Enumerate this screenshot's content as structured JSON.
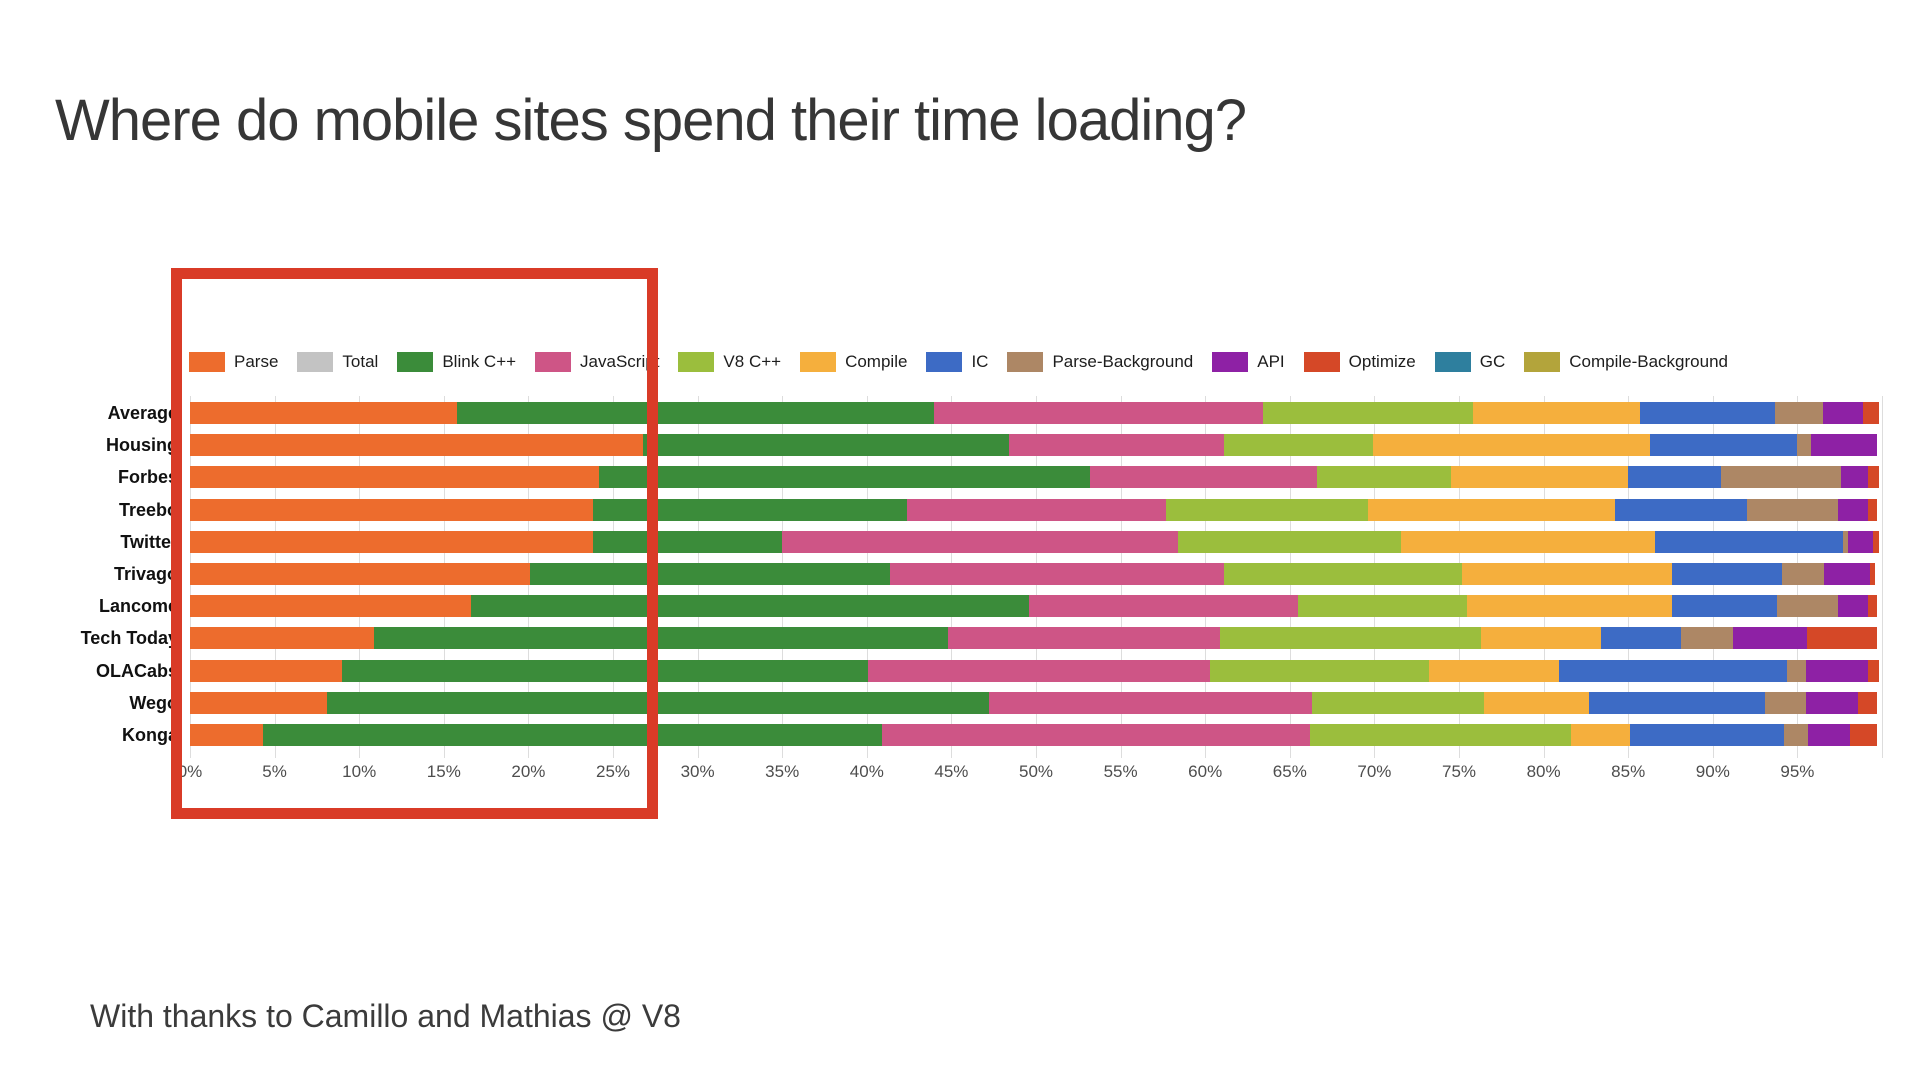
{
  "page": {
    "title": "Where do mobile sites spend their time loading?",
    "footer": "With thanks to Camillo and Mathias @ V8"
  },
  "chart_data": {
    "type": "bar",
    "stacked": true,
    "orientation": "horizontal",
    "grid": true,
    "legend_position": "top",
    "xlim": [
      0,
      100
    ],
    "x_ticks": [
      "0%",
      "5%",
      "10%",
      "15%",
      "20%",
      "25%",
      "30%",
      "35%",
      "40%",
      "45%",
      "50%",
      "55%",
      "60%",
      "65%",
      "70%",
      "75%",
      "80%",
      "85%",
      "90%",
      "95%"
    ],
    "categories": [
      "Average",
      "Housing",
      "Forbes",
      "Treebo",
      "Twitter",
      "Trivago",
      "Lancome",
      "Tech Today",
      "OLACabs",
      "Wego",
      "Konga"
    ],
    "series": [
      {
        "name": "Parse",
        "color": "#ed6c2d",
        "dotted": false,
        "values": [
          15.8,
          26.8,
          24.2,
          23.8,
          23.8,
          20.1,
          16.6,
          10.9,
          9.0,
          8.1,
          4.3
        ]
      },
      {
        "name": "Total",
        "color": "#c3c3c3",
        "dotted": false,
        "values": [
          0,
          0,
          0,
          0,
          0,
          0,
          0,
          0,
          0,
          0,
          0
        ]
      },
      {
        "name": "Blink C++",
        "color": "#3b8c3a",
        "dotted": false,
        "values": [
          28.2,
          21.6,
          29.0,
          18.6,
          11.2,
          21.3,
          33.0,
          33.9,
          31.1,
          39.1,
          36.6
        ]
      },
      {
        "name": "JavaScript",
        "color": "#ce5586",
        "dotted": false,
        "values": [
          19.4,
          12.7,
          13.4,
          15.3,
          23.4,
          19.7,
          15.9,
          16.1,
          20.2,
          19.1,
          25.3
        ]
      },
      {
        "name": "V8 C++",
        "color": "#9bbe3d",
        "dotted": false,
        "values": [
          12.4,
          8.8,
          7.9,
          11.9,
          13.2,
          14.1,
          10.0,
          15.4,
          12.9,
          10.2,
          15.4
        ]
      },
      {
        "name": "Compile",
        "color": "#f5af3d",
        "dotted": false,
        "values": [
          9.9,
          16.4,
          10.5,
          14.6,
          15.0,
          12.4,
          12.1,
          7.1,
          7.7,
          6.2,
          3.5
        ]
      },
      {
        "name": "IC",
        "color": "#3d6bc5",
        "dotted": false,
        "values": [
          8.0,
          8.7,
          5.5,
          7.8,
          11.1,
          6.5,
          6.2,
          4.7,
          13.5,
          10.4,
          9.1
        ]
      },
      {
        "name": "Parse-Background",
        "color": "#ad8765",
        "dotted": true,
        "values": [
          2.8,
          0.8,
          7.1,
          5.4,
          0.3,
          2.5,
          3.6,
          3.1,
          1.1,
          2.4,
          1.4
        ]
      },
      {
        "name": "API",
        "color": "#8e21a5",
        "dotted": false,
        "values": [
          2.4,
          3.9,
          1.6,
          1.8,
          1.5,
          2.7,
          1.8,
          4.4,
          3.7,
          3.1,
          2.5
        ]
      },
      {
        "name": "Optimize",
        "color": "#d54827",
        "dotted": false,
        "values": [
          0.9,
          0,
          0.6,
          0.5,
          0.3,
          0.3,
          0.5,
          4.1,
          0.6,
          1.1,
          1.6
        ]
      },
      {
        "name": "GC",
        "color": "#2e7f9e",
        "dotted": true,
        "values": [
          0,
          0,
          0,
          0,
          0,
          0,
          0,
          0,
          0,
          0,
          0
        ]
      },
      {
        "name": "Compile-Background",
        "color": "#b3a43b",
        "dotted": false,
        "values": [
          0,
          0,
          0,
          0,
          0,
          0,
          0,
          0,
          0,
          0,
          0
        ]
      }
    ],
    "annotations": [
      {
        "type": "highlight-box",
        "color": "#d93b27",
        "x_from_pct": -0.5,
        "x_to_pct": 27.0
      }
    ]
  }
}
